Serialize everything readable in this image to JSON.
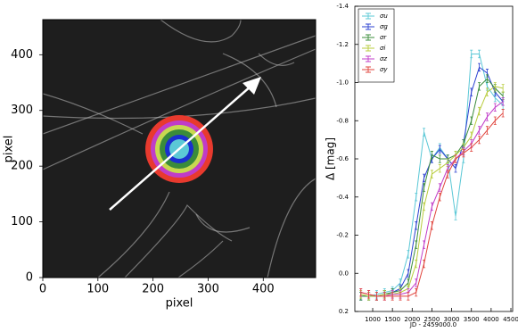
{
  "chart_data": [
    {
      "type": "image",
      "xlabel": "pixel",
      "ylabel": "pixel",
      "xlim": [
        0,
        495
      ],
      "ylim": [
        0,
        463
      ],
      "xticks": [
        0,
        100,
        200,
        300,
        400
      ],
      "yticks": [
        0,
        100,
        200,
        300,
        400
      ]
    },
    {
      "type": "line",
      "xlabel": "JD - 2459000.0",
      "ylabel": "Δ [mag]",
      "invert_y": true,
      "legend": "upper left",
      "xlim": [
        548,
        4545
      ],
      "ylim": [
        -1.4,
        0.2
      ],
      "xticks": [
        1000,
        1500,
        2000,
        2500,
        3000,
        3500,
        4000,
        4500
      ],
      "yticks": [
        -1.4,
        -1.2,
        {
          "value": -1,
          "label": "-1.0"
        },
        -0.8,
        -0.6,
        -0.4,
        -0.2,
        {
          "value": 0,
          "label": "0.0"
        },
        0.2
      ],
      "x": [
        700,
        900,
        1100,
        1300,
        1500,
        1700,
        1900,
        2100,
        2300,
        2500,
        2700,
        2900,
        3100,
        3300,
        3500,
        3700,
        3900,
        4100,
        4300
      ],
      "series": [
        {
          "name": "σu",
          "color": "#5bc8d6",
          "yerr": 0.02,
          "values": [
            0.12,
            0.12,
            0.11,
            0.1,
            0.09,
            0.05,
            -0.1,
            -0.4,
            -0.74,
            -0.6,
            -0.66,
            -0.6,
            -0.3,
            -0.6,
            -1.15,
            -1.15,
            -0.98,
            -0.92,
            -0.88
          ]
        },
        {
          "name": "σg",
          "color": "#2a3fd0",
          "yerr": 0.02,
          "values": [
            0.12,
            0.12,
            0.12,
            0.11,
            0.1,
            0.08,
            0,
            -0.25,
            -0.5,
            -0.6,
            -0.65,
            -0.6,
            -0.55,
            -0.68,
            -0.95,
            -1.08,
            -1.05,
            -0.95,
            -0.9
          ]
        },
        {
          "name": "σr",
          "color": "#3a8c3a",
          "yerr": 0.02,
          "values": [
            0.12,
            0.12,
            0.12,
            0.11,
            0.1,
            0.09,
            0.05,
            -0.15,
            -0.45,
            -0.62,
            -0.6,
            -0.6,
            -0.62,
            -0.68,
            -0.8,
            -0.98,
            -1.02,
            -0.97,
            -0.93
          ]
        },
        {
          "name": "σi",
          "color": "#b8cc3c",
          "yerr": 0.02,
          "values": [
            0.11,
            0.12,
            0.12,
            0.11,
            0.11,
            0.1,
            0.08,
            -0.05,
            -0.35,
            -0.52,
            -0.55,
            -0.58,
            -0.62,
            -0.66,
            -0.72,
            -0.85,
            -0.95,
            -0.98,
            -0.97
          ]
        },
        {
          "name": "σz",
          "color": "#c03cc8",
          "yerr": 0.02,
          "values": [
            0.1,
            0.11,
            0.12,
            0.12,
            0.11,
            0.11,
            0.1,
            0.05,
            -0.15,
            -0.35,
            -0.45,
            -0.55,
            -0.6,
            -0.64,
            -0.68,
            -0.75,
            -0.82,
            -0.87,
            -0.9
          ]
        },
        {
          "name": "σy",
          "color": "#e0443c",
          "yerr": 0.02,
          "values": [
            0.1,
            0.11,
            0.12,
            0.12,
            0.12,
            0.12,
            0.12,
            0.1,
            -0.05,
            -0.25,
            -0.4,
            -0.52,
            -0.6,
            -0.63,
            -0.66,
            -0.7,
            -0.75,
            -0.8,
            -0.84
          ]
        }
      ]
    }
  ]
}
